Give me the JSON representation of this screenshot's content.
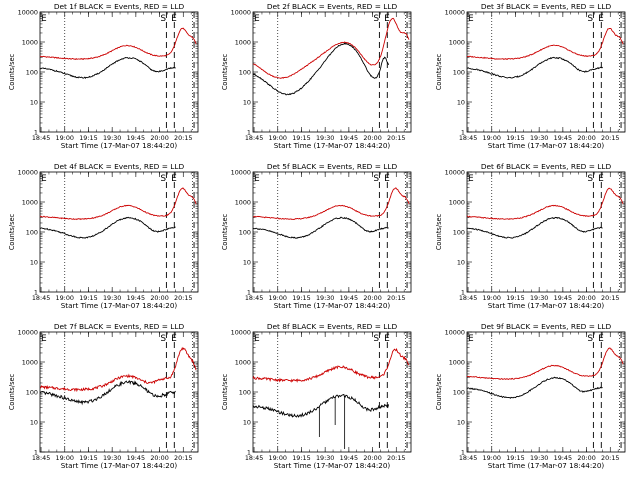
{
  "chart_data": [
    {
      "type": "line",
      "title": "Det 1f BLACK = Events, RED = LLD",
      "variant": "a",
      "markers": [
        {
          "label": "E",
          "t": 0
        },
        {
          "label": "S",
          "t": 80
        },
        {
          "label": "E",
          "t": 83
        }
      ]
    },
    {
      "type": "line",
      "title": "Det 2f BLACK = Events, RED = LLD",
      "variant": "b",
      "markers": [
        {
          "label": "E",
          "t": 0
        },
        {
          "label": "S",
          "t": 80
        },
        {
          "label": "E",
          "t": 83
        }
      ]
    },
    {
      "type": "line",
      "title": "Det 3f BLACK = Events, RED = LLD",
      "variant": "a",
      "markers": [
        {
          "label": "E",
          "t": 0
        },
        {
          "label": "S",
          "t": 80
        },
        {
          "label": "E",
          "t": 83
        }
      ]
    },
    {
      "type": "line",
      "title": "Det 4f BLACK = Events, RED = LLD",
      "variant": "a",
      "markers": [
        {
          "label": "E",
          "t": 0
        },
        {
          "label": "S",
          "t": 80
        },
        {
          "label": "E",
          "t": 83
        }
      ]
    },
    {
      "type": "line",
      "title": "Det 5f BLACK = Events, RED = LLD",
      "variant": "a",
      "markers": [
        {
          "label": "E",
          "t": 0
        },
        {
          "label": "S",
          "t": 80
        },
        {
          "label": "E",
          "t": 83
        }
      ]
    },
    {
      "type": "line",
      "title": "Det 6f BLACK = Events, RED = LLD",
      "variant": "a",
      "markers": [
        {
          "label": "E",
          "t": 0
        },
        {
          "label": "S",
          "t": 80
        },
        {
          "label": "E",
          "t": 83
        }
      ]
    },
    {
      "type": "line",
      "title": "Det 7f BLACK = Events, RED = LLD",
      "variant": "c",
      "markers": [
        {
          "label": "E",
          "t": 0
        },
        {
          "label": "S",
          "t": 80
        },
        {
          "label": "E",
          "t": 83
        }
      ]
    },
    {
      "type": "line",
      "title": "Det 8f BLACK = Events, RED = LLD",
      "variant": "d",
      "markers": [
        {
          "label": "E",
          "t": 0
        },
        {
          "label": "S",
          "t": 80
        },
        {
          "label": "E",
          "t": 83
        }
      ]
    },
    {
      "type": "line",
      "title": "Det 9f BLACK = Events, RED = LLD",
      "variant": "a",
      "markers": [
        {
          "label": "E",
          "t": 0
        },
        {
          "label": "S",
          "t": 80
        },
        {
          "label": "E",
          "t": 83
        }
      ]
    }
  ],
  "shared": {
    "xlabel": "Start Time (17-Mar-07 18:44:20)",
    "ylabel": "Counts/sec",
    "xticks": [
      "18:45",
      "19:00",
      "19:15",
      "19:30",
      "19:45",
      "20:00",
      "20:15"
    ],
    "xtick_minutes": [
      0.67,
      15.67,
      30.67,
      45.67,
      60.67,
      75.67,
      90.67
    ],
    "xlim_minutes": [
      0,
      100
    ],
    "ylim": [
      1,
      10000
    ],
    "yscale": "log",
    "yticks": [
      "1",
      "10",
      "100",
      "1000",
      "10000"
    ],
    "ytick_values": [
      1,
      10,
      100,
      1000,
      10000
    ],
    "dotted_lines_minutes": [
      15.67,
      96.5
    ],
    "dashed_lines_minutes": [
      80,
      85,
      97.5
    ],
    "series_colors": {
      "events": "#000000",
      "lld": "#cc0000"
    },
    "series_names": {
      "events": "Events",
      "lld": "LLD"
    }
  }
}
